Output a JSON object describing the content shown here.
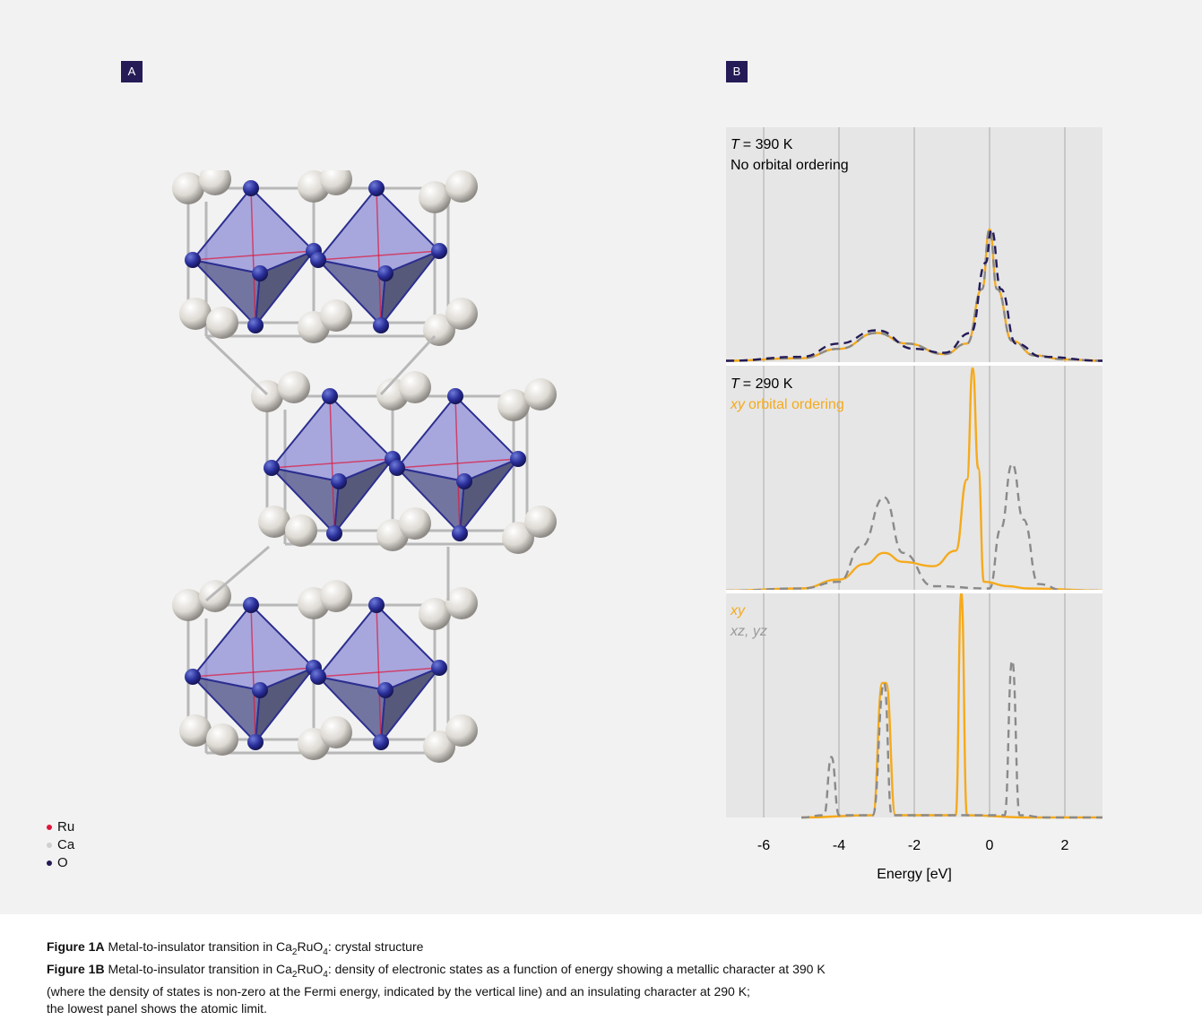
{
  "panel_a": {
    "tag": "A"
  },
  "panel_b": {
    "tag": "B"
  },
  "legend": [
    {
      "label": "Ru",
      "color": "#e0153a"
    },
    {
      "label": "Ca",
      "color": "#cfcfcf"
    },
    {
      "label": "O",
      "color": "#241b57"
    }
  ],
  "colors": {
    "xy": "#f5aa1c",
    "xzyz": "#8a8a8a",
    "total_390": "#241b57",
    "panel_bg": "#e6e6e6",
    "tag_bg": "#241b57"
  },
  "chart_data": {
    "type": "line",
    "xlabel": "Energy [eV]",
    "xlim": [
      -7,
      3
    ],
    "x_ticks": [
      -6,
      -4,
      -2,
      0,
      2
    ],
    "grid": "vertical",
    "fermi_energy": 0,
    "panels": [
      {
        "temperature_label": "= 390 K",
        "temperature_symbol": "T",
        "subtitle": "No orbital ordering",
        "series": [
          {
            "style": "solid",
            "color": "#f5aa1c",
            "points": [
              [
                -7,
                0.01
              ],
              [
                -5,
                0.03
              ],
              [
                -4,
                0.1
              ],
              [
                -3,
                0.22
              ],
              [
                -2.2,
                0.14
              ],
              [
                -1.2,
                0.06
              ],
              [
                -0.6,
                0.14
              ],
              [
                -0.2,
                0.55
              ],
              [
                0,
                1
              ],
              [
                0.2,
                0.55
              ],
              [
                0.6,
                0.16
              ],
              [
                1.2,
                0.05
              ],
              [
                2,
                0.02
              ],
              [
                3,
                0.01
              ]
            ]
          },
          {
            "style": "dashed",
            "color": "#8a8a8a",
            "points": [
              [
                -7,
                0.01
              ],
              [
                -5,
                0.03
              ],
              [
                -4,
                0.1
              ],
              [
                -3,
                0.22
              ],
              [
                -2.2,
                0.14
              ],
              [
                -1.2,
                0.06
              ],
              [
                -0.6,
                0.14
              ],
              [
                -0.2,
                0.55
              ],
              [
                0,
                1
              ],
              [
                0.2,
                0.55
              ],
              [
                0.6,
                0.16
              ],
              [
                1.2,
                0.05
              ],
              [
                2,
                0.02
              ],
              [
                3,
                0.01
              ]
            ]
          },
          {
            "style": "dashed",
            "color": "#241b57",
            "points": [
              [
                -7,
                0.01
              ],
              [
                -5,
                0.04
              ],
              [
                -4,
                0.14
              ],
              [
                -3,
                0.24
              ],
              [
                -2,
                0.1
              ],
              [
                -1.2,
                0.07
              ],
              [
                -0.5,
                0.22
              ],
              [
                -0.1,
                0.75
              ],
              [
                0.05,
                1
              ],
              [
                0.3,
                0.55
              ],
              [
                0.7,
                0.14
              ],
              [
                1.4,
                0.04
              ],
              [
                3,
                0.01
              ]
            ]
          }
        ]
      },
      {
        "temperature_label": "= 290 K",
        "temperature_symbol": "T",
        "subtitle": "orbital ordering",
        "subtitle_prefix": "xy",
        "series": [
          {
            "style": "solid",
            "color": "#f5aa1c",
            "points": [
              [
                -7,
                0
              ],
              [
                -5,
                0.01
              ],
              [
                -4,
                0.05
              ],
              [
                -3.3,
                0.12
              ],
              [
                -2.8,
                0.17
              ],
              [
                -2.3,
                0.13
              ],
              [
                -1.5,
                0.11
              ],
              [
                -0.9,
                0.18
              ],
              [
                -0.6,
                0.5
              ],
              [
                -0.45,
                1
              ],
              [
                -0.3,
                0.55
              ],
              [
                -0.15,
                0.04
              ],
              [
                0.5,
                0.02
              ],
              [
                1,
                0.01
              ],
              [
                3,
                0
              ]
            ]
          },
          {
            "style": "dashed",
            "color": "#8a8a8a",
            "points": [
              [
                -7,
                0
              ],
              [
                -5,
                0.01
              ],
              [
                -4,
                0.04
              ],
              [
                -3.4,
                0.2
              ],
              [
                -2.8,
                0.42
              ],
              [
                -2.3,
                0.17
              ],
              [
                -1.5,
                0.02
              ],
              [
                0,
                0.01
              ],
              [
                0.3,
                0.28
              ],
              [
                0.6,
                0.57
              ],
              [
                0.9,
                0.32
              ],
              [
                1.3,
                0.03
              ],
              [
                2,
                0
              ],
              [
                3,
                0
              ]
            ]
          }
        ]
      },
      {
        "legend_xy": "xy",
        "legend_xzyz": "xz, yz",
        "series": [
          {
            "style": "solid",
            "color": "#f5aa1c",
            "points": [
              [
                -5,
                0
              ],
              [
                -3.1,
                0.01
              ],
              [
                -2.85,
                0.6
              ],
              [
                -2.75,
                0.6
              ],
              [
                -2.5,
                0.01
              ],
              [
                -0.9,
                0.01
              ],
              [
                -0.75,
                1
              ],
              [
                -0.6,
                0.01
              ],
              [
                1,
                0
              ],
              [
                3,
                0
              ]
            ]
          },
          {
            "style": "dashed",
            "color": "#8a8a8a",
            "points": [
              [
                -5,
                0
              ],
              [
                -4.4,
                0.01
              ],
              [
                -4.2,
                0.27
              ],
              [
                -4.0,
                0.01
              ],
              [
                -3.1,
                0.01
              ],
              [
                -2.8,
                0.6
              ],
              [
                -2.6,
                0.01
              ],
              [
                0.4,
                0.01
              ],
              [
                0.6,
                0.7
              ],
              [
                0.8,
                0.01
              ],
              [
                1.5,
                0
              ],
              [
                3,
                0
              ]
            ]
          }
        ]
      }
    ]
  },
  "caption": {
    "a_label": "Figure 1A",
    "a_text": "Metal-to-insulator transition in Ca",
    "b_label": "Figure 1B",
    "b_text": "Metal-to-insulator transition in Ca",
    "formula_sub1": "2",
    "formula_mid": "RuO",
    "formula_sub2": "4",
    "a_tail": ": crystal structure",
    "b_tail": ": density of electronic states as a function of energy showing a metallic character at 390 K",
    "line3": "(where the density of states is non-zero at the Fermi energy, indicated by the vertical line) and an insulating character at 290 K;",
    "line4": "the lowest panel shows the atomic limit."
  }
}
